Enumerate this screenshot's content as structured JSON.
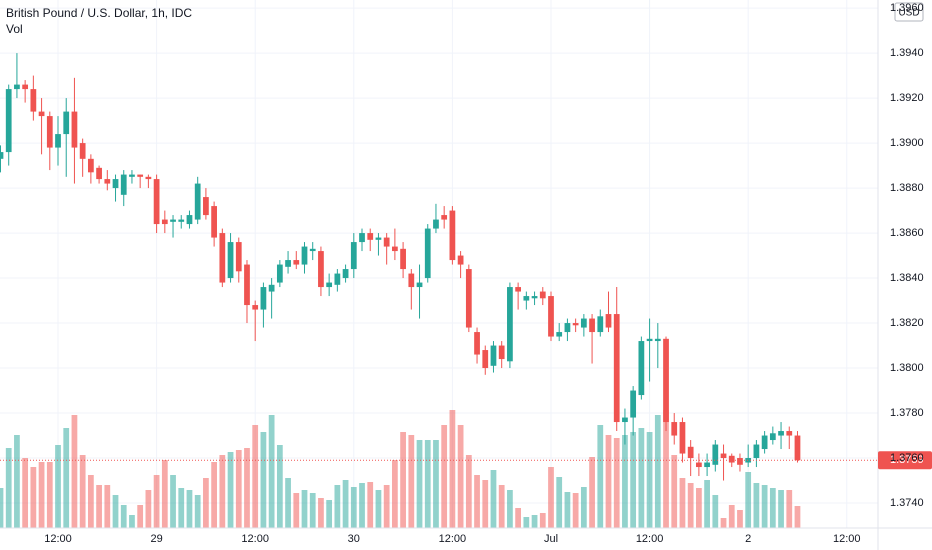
{
  "chart_data": {
    "type": "candlestick",
    "title": "British Pound / U.S. Dollar, 1h, IDC",
    "volume_label": "Vol",
    "currency": "USD",
    "open": [
      1.3893,
      1.3896,
      1.3924,
      1.3926,
      1.3924,
      1.3914,
      1.3912,
      1.3898,
      1.3904,
      1.3914,
      1.39,
      1.3893,
      1.3889,
      1.3884,
      1.388,
      1.3877,
      1.3885,
      1.3886,
      1.3885,
      1.3884,
      1.3866,
      1.3865,
      1.3865,
      1.3864,
      1.3866,
      1.3876,
      1.3872,
      1.386,
      1.384,
      1.3856,
      1.3846,
      1.3828,
      1.3826,
      1.3834,
      1.3838,
      1.3845,
      1.3848,
      1.3846,
      1.3852,
      1.3852,
      1.3836,
      1.3837,
      1.384,
      1.3844,
      1.3856,
      1.386,
      1.3857,
      1.3858,
      1.3854,
      1.3853,
      1.3842,
      1.3836,
      1.384,
      1.3862,
      1.3868,
      1.387,
      1.385,
      1.3844,
      1.3816,
      1.3808,
      1.3801,
      1.381,
      1.3803,
      1.3836,
      1.383,
      1.3831,
      1.3834,
      1.3832,
      1.3814,
      1.3816,
      1.382,
      1.3818,
      1.3822,
      1.3816,
      1.3824,
      1.3824,
      1.3776,
      1.3778,
      1.3788,
      1.3812,
      1.3812,
      1.3813,
      1.3776,
      1.3776,
      1.3765,
      1.3758,
      1.3756,
      1.3757,
      1.3762,
      1.3761,
      1.376,
      1.3758,
      1.376,
      1.3764,
      1.3768,
      1.377,
      1.3772,
      1.377
    ],
    "high": [
      1.3899,
      1.3926,
      1.394,
      1.3928,
      1.393,
      1.392,
      1.3914,
      1.3912,
      1.392,
      1.3929,
      1.3902,
      1.3895,
      1.389,
      1.3888,
      1.3886,
      1.3888,
      1.3888,
      1.3886,
      1.3886,
      1.3886,
      1.387,
      1.3868,
      1.3868,
      1.387,
      1.3885,
      1.388,
      1.3874,
      1.3862,
      1.386,
      1.3858,
      1.3848,
      1.383,
      1.3838,
      1.384,
      1.3848,
      1.3852,
      1.3852,
      1.3856,
      1.3856,
      1.3854,
      1.3842,
      1.3844,
      1.3846,
      1.386,
      1.3862,
      1.3862,
      1.386,
      1.386,
      1.3862,
      1.3856,
      1.3844,
      1.3846,
      1.3864,
      1.3873,
      1.3872,
      1.3872,
      1.3852,
      1.3846,
      1.3818,
      1.381,
      1.3812,
      1.3812,
      1.3838,
      1.3838,
      1.3834,
      1.3834,
      1.3836,
      1.3834,
      1.382,
      1.3822,
      1.3822,
      1.3824,
      1.3824,
      1.3826,
      1.3834,
      1.3836,
      1.3782,
      1.3792,
      1.3814,
      1.3822,
      1.382,
      1.3814,
      1.378,
      1.3778,
      1.3768,
      1.3762,
      1.3762,
      1.3768,
      1.3766,
      1.3762,
      1.3762,
      1.3766,
      1.3768,
      1.3772,
      1.3774,
      1.3776,
      1.3774,
      1.3772
    ],
    "low": [
      1.3887,
      1.389,
      1.392,
      1.3918,
      1.391,
      1.3895,
      1.3888,
      1.389,
      1.3885,
      1.3882,
      1.3885,
      1.3882,
      1.3882,
      1.3879,
      1.3874,
      1.3872,
      1.3882,
      1.388,
      1.388,
      1.386,
      1.386,
      1.3858,
      1.3862,
      1.3862,
      1.3864,
      1.3866,
      1.3854,
      1.3836,
      1.3838,
      1.3838,
      1.382,
      1.3812,
      1.3818,
      1.3822,
      1.3836,
      1.3842,
      1.3844,
      1.3842,
      1.3848,
      1.3832,
      1.3832,
      1.3834,
      1.3838,
      1.384,
      1.3852,
      1.3852,
      1.385,
      1.3846,
      1.3848,
      1.384,
      1.3826,
      1.3822,
      1.3838,
      1.386,
      1.3862,
      1.3846,
      1.384,
      1.3816,
      1.3802,
      1.3797,
      1.3798,
      1.38,
      1.38,
      1.3826,
      1.3826,
      1.3828,
      1.3828,
      1.3812,
      1.3812,
      1.3812,
      1.3816,
      1.3814,
      1.3802,
      1.3814,
      1.3816,
      1.3772,
      1.3766,
      1.377,
      1.3786,
      1.3794,
      1.38,
      1.3772,
      1.3766,
      1.3758,
      1.3752,
      1.3752,
      1.3752,
      1.3754,
      1.375,
      1.3756,
      1.3754,
      1.3756,
      1.3756,
      1.3762,
      1.3766,
      1.3764,
      1.3764,
      1.3758
    ],
    "close": [
      1.3896,
      1.3924,
      1.3926,
      1.3924,
      1.3914,
      1.3912,
      1.3898,
      1.3904,
      1.3914,
      1.3898,
      1.3893,
      1.3887,
      1.3884,
      1.3882,
      1.3884,
      1.3886,
      1.3886,
      1.3885,
      1.3884,
      1.3864,
      1.3864,
      1.3866,
      1.3866,
      1.3868,
      1.3882,
      1.3868,
      1.3858,
      1.3838,
      1.3856,
      1.3843,
      1.3828,
      1.3826,
      1.3836,
      1.3837,
      1.3846,
      1.3848,
      1.3846,
      1.3854,
      1.3853,
      1.3836,
      1.3838,
      1.3842,
      1.3844,
      1.3856,
      1.386,
      1.3857,
      1.3858,
      1.3854,
      1.3852,
      1.3844,
      1.3836,
      1.3838,
      1.3862,
      1.3866,
      1.3866,
      1.3848,
      1.3846,
      1.3818,
      1.3806,
      1.38,
      1.381,
      1.3804,
      1.3836,
      1.3834,
      1.3832,
      1.3832,
      1.3831,
      1.3814,
      1.3816,
      1.382,
      1.3819,
      1.3822,
      1.3816,
      1.3823,
      1.3818,
      1.3776,
      1.3778,
      1.379,
      1.3812,
      1.3813,
      1.3813,
      1.3776,
      1.377,
      1.3762,
      1.376,
      1.3756,
      1.3758,
      1.3766,
      1.376,
      1.3758,
      1.3757,
      1.376,
      1.3766,
      1.377,
      1.3771,
      1.3772,
      1.377,
      1.3759
    ],
    "volume": [
      40,
      80,
      93,
      70,
      61,
      66,
      66,
      83,
      100,
      113,
      73,
      53,
      43,
      43,
      33,
      23,
      13,
      23,
      38,
      53,
      68,
      53,
      40,
      38,
      33,
      50,
      66,
      73,
      76,
      78,
      80,
      103,
      96,
      113,
      83,
      50,
      35,
      38,
      35,
      30,
      28,
      43,
      48,
      41,
      45,
      46,
      38,
      43,
      68,
      96,
      93,
      88,
      88,
      88,
      103,
      118,
      103,
      73,
      53,
      48,
      58,
      43,
      38,
      20,
      11,
      13,
      15,
      61,
      51,
      36,
      35,
      41,
      71,
      103,
      93,
      90,
      93,
      96,
      100,
      96,
      113,
      118,
      73,
      50,
      45,
      40,
      48,
      33,
      10,
      23,
      18,
      56,
      45,
      43,
      40,
      38,
      38,
      22
    ],
    "xlim": [
      -0.06,
      106.8
    ],
    "ylim": [
      1.37289,
      1.39636
    ],
    "volume_ylim": [
      0,
      528
    ],
    "xticks": [
      {
        "value": 7,
        "label": "12:00"
      },
      {
        "value": 19,
        "label": "29"
      },
      {
        "value": 31,
        "label": "12:00"
      },
      {
        "value": 43,
        "label": "30"
      },
      {
        "value": 55,
        "label": "12:00"
      },
      {
        "value": 67,
        "label": "Jul"
      },
      {
        "value": 79,
        "label": "12:00"
      },
      {
        "value": 91,
        "label": "2"
      },
      {
        "value": 103,
        "label": "12:00"
      }
    ],
    "yticks": [
      {
        "value": 1.374,
        "label": "1.3740"
      },
      {
        "value": 1.376,
        "label": "1.3760"
      },
      {
        "value": 1.378,
        "label": "1.3780"
      },
      {
        "value": 1.38,
        "label": "1.3800"
      },
      {
        "value": 1.382,
        "label": "1.3820"
      },
      {
        "value": 1.384,
        "label": "1.3840"
      },
      {
        "value": 1.386,
        "label": "1.3860"
      },
      {
        "value": 1.388,
        "label": "1.3880"
      },
      {
        "value": 1.39,
        "label": "1.3900"
      },
      {
        "value": 1.392,
        "label": "1.3920"
      },
      {
        "value": 1.394,
        "label": "1.3940"
      },
      {
        "value": 1.396,
        "label": "1.3960"
      }
    ],
    "last_price": {
      "value": 1.3759,
      "label": "1.3759"
    },
    "up_color": "#26a69a",
    "down_color": "#ef5350",
    "grid": true
  }
}
